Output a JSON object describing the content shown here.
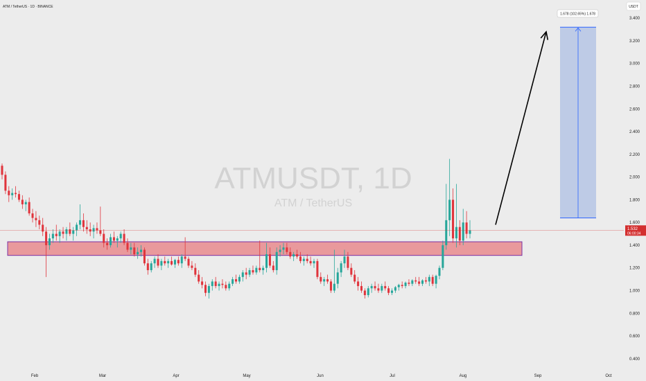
{
  "header": {
    "symbol_title": "ATM / TetherUS · 1D · BINANCE",
    "currency": "USDT"
  },
  "watermark": {
    "ticker": "ATMUSDT, 1D",
    "name": "ATM / TetherUS"
  },
  "colors": {
    "up": "#26a69a",
    "down": "#e0343c",
    "zone_fill": "#e98b8e",
    "zone_border": "#7b2fa3",
    "target_fill": "#b9c8e6",
    "target_border": "#2962ff",
    "price_tag": "#d32f2f",
    "arrow": "#000000"
  },
  "price_tag": {
    "price": "1.532",
    "countdown": "06:00:34"
  },
  "chart_data": {
    "type": "candlestick",
    "x_months": [
      "Feb",
      "Mar",
      "Apr",
      "May",
      "Jun",
      "Jul",
      "Aug",
      "Sep",
      "Oct"
    ],
    "y_ticks": [
      "0.400",
      "0.600",
      "0.800",
      "1.000",
      "1.200",
      "1.400",
      "1.600",
      "1.800",
      "2.000",
      "2.200",
      "2.400",
      "2.600",
      "2.800",
      "3.000",
      "3.200",
      "3.400"
    ],
    "ylim": [
      0.35,
      3.45
    ],
    "current_price": 1.532,
    "support_zone": {
      "low": 1.31,
      "high": 1.43
    },
    "target": {
      "from": 1.64,
      "to": 3.32,
      "label": "1.678 (102.65%) 1.678"
    },
    "arrow": {
      "from_price": 1.58,
      "to_price": 3.28
    },
    "candles": [
      [
        2.1,
        2.12,
        1.98,
        2.02
      ],
      [
        2.02,
        2.05,
        1.85,
        1.88
      ],
      [
        1.88,
        1.92,
        1.78,
        1.84
      ],
      [
        1.84,
        1.9,
        1.8,
        1.86
      ],
      [
        1.86,
        1.92,
        1.82,
        1.85
      ],
      [
        1.85,
        1.88,
        1.78,
        1.8
      ],
      [
        1.8,
        1.84,
        1.72,
        1.76
      ],
      [
        1.76,
        1.8,
        1.7,
        1.78
      ],
      [
        1.78,
        1.82,
        1.66,
        1.68
      ],
      [
        1.68,
        1.72,
        1.6,
        1.64
      ],
      [
        1.64,
        1.7,
        1.56,
        1.62
      ],
      [
        1.62,
        1.66,
        1.54,
        1.58
      ],
      [
        1.58,
        1.64,
        1.48,
        1.52
      ],
      [
        1.52,
        1.56,
        1.12,
        1.4
      ],
      [
        1.4,
        1.5,
        1.36,
        1.46
      ],
      [
        1.46,
        1.54,
        1.42,
        1.5
      ],
      [
        1.5,
        1.58,
        1.44,
        1.48
      ],
      [
        1.48,
        1.54,
        1.42,
        1.52
      ],
      [
        1.52,
        1.56,
        1.46,
        1.5
      ],
      [
        1.5,
        1.56,
        1.44,
        1.54
      ],
      [
        1.54,
        1.6,
        1.48,
        1.5
      ],
      [
        1.5,
        1.56,
        1.44,
        1.53
      ],
      [
        1.53,
        1.6,
        1.48,
        1.58
      ],
      [
        1.58,
        1.76,
        1.54,
        1.62
      ],
      [
        1.62,
        1.68,
        1.52,
        1.56
      ],
      [
        1.56,
        1.62,
        1.5,
        1.54
      ],
      [
        1.54,
        1.6,
        1.48,
        1.52
      ],
      [
        1.52,
        1.58,
        1.46,
        1.55
      ],
      [
        1.55,
        1.6,
        1.5,
        1.53
      ],
      [
        1.53,
        1.74,
        1.48,
        1.5
      ],
      [
        1.5,
        1.54,
        1.38,
        1.42
      ],
      [
        1.42,
        1.46,
        1.36,
        1.4
      ],
      [
        1.4,
        1.5,
        1.38,
        1.47
      ],
      [
        1.47,
        1.52,
        1.42,
        1.44
      ],
      [
        1.44,
        1.48,
        1.38,
        1.46
      ],
      [
        1.46,
        1.52,
        1.42,
        1.5
      ],
      [
        1.5,
        1.54,
        1.4,
        1.42
      ],
      [
        1.42,
        1.46,
        1.34,
        1.36
      ],
      [
        1.36,
        1.42,
        1.32,
        1.38
      ],
      [
        1.38,
        1.42,
        1.3,
        1.32
      ],
      [
        1.32,
        1.38,
        1.28,
        1.34
      ],
      [
        1.34,
        1.4,
        1.3,
        1.36
      ],
      [
        1.36,
        1.38,
        1.22,
        1.24
      ],
      [
        1.24,
        1.28,
        1.14,
        1.18
      ],
      [
        1.18,
        1.26,
        1.16,
        1.24
      ],
      [
        1.24,
        1.3,
        1.2,
        1.28
      ],
      [
        1.28,
        1.32,
        1.2,
        1.22
      ],
      [
        1.22,
        1.28,
        1.18,
        1.26
      ],
      [
        1.26,
        1.3,
        1.22,
        1.24
      ],
      [
        1.24,
        1.28,
        1.2,
        1.26
      ],
      [
        1.26,
        1.3,
        1.22,
        1.23
      ],
      [
        1.23,
        1.28,
        1.2,
        1.27
      ],
      [
        1.27,
        1.3,
        1.22,
        1.24
      ],
      [
        1.24,
        1.32,
        1.2,
        1.3
      ],
      [
        1.3,
        1.47,
        1.26,
        1.28
      ],
      [
        1.28,
        1.3,
        1.2,
        1.22
      ],
      [
        1.22,
        1.26,
        1.18,
        1.2
      ],
      [
        1.2,
        1.24,
        1.12,
        1.14
      ],
      [
        1.14,
        1.18,
        1.06,
        1.08
      ],
      [
        1.08,
        1.12,
        1.02,
        1.05
      ],
      [
        1.05,
        1.08,
        0.95,
        0.98
      ],
      [
        0.98,
        1.06,
        0.93,
        1.04
      ],
      [
        1.04,
        1.1,
        1.0,
        1.08
      ],
      [
        1.08,
        1.12,
        1.02,
        1.04
      ],
      [
        1.04,
        1.08,
        1.0,
        1.06
      ],
      [
        1.06,
        1.1,
        1.02,
        1.05
      ],
      [
        1.05,
        1.08,
        1.0,
        1.02
      ],
      [
        1.02,
        1.08,
        1.0,
        1.06
      ],
      [
        1.06,
        1.12,
        1.04,
        1.1
      ],
      [
        1.1,
        1.14,
        1.06,
        1.08
      ],
      [
        1.08,
        1.14,
        1.06,
        1.12
      ],
      [
        1.12,
        1.18,
        1.08,
        1.16
      ],
      [
        1.16,
        1.2,
        1.1,
        1.14
      ],
      [
        1.14,
        1.2,
        1.12,
        1.18
      ],
      [
        1.18,
        1.22,
        1.14,
        1.16
      ],
      [
        1.16,
        1.22,
        1.14,
        1.2
      ],
      [
        1.2,
        1.44,
        1.16,
        1.18
      ],
      [
        1.18,
        1.22,
        1.14,
        1.2
      ],
      [
        1.2,
        1.42,
        1.16,
        1.32
      ],
      [
        1.32,
        1.38,
        1.2,
        1.22
      ],
      [
        1.22,
        1.26,
        1.16,
        1.18
      ],
      [
        1.18,
        1.38,
        1.14,
        1.34
      ],
      [
        1.34,
        1.4,
        1.3,
        1.36
      ],
      [
        1.36,
        1.42,
        1.32,
        1.38
      ],
      [
        1.38,
        1.42,
        1.32,
        1.34
      ],
      [
        1.34,
        1.38,
        1.28,
        1.3
      ],
      [
        1.3,
        1.34,
        1.26,
        1.32
      ],
      [
        1.32,
        1.36,
        1.28,
        1.3
      ],
      [
        1.3,
        1.34,
        1.24,
        1.26
      ],
      [
        1.26,
        1.3,
        1.22,
        1.28
      ],
      [
        1.28,
        1.32,
        1.24,
        1.26
      ],
      [
        1.26,
        1.3,
        1.22,
        1.24
      ],
      [
        1.24,
        1.28,
        1.2,
        1.26
      ],
      [
        1.26,
        1.28,
        1.1,
        1.12
      ],
      [
        1.12,
        1.16,
        1.06,
        1.08
      ],
      [
        1.08,
        1.12,
        1.04,
        1.1
      ],
      [
        1.1,
        1.14,
        1.06,
        1.08
      ],
      [
        1.08,
        1.1,
        0.98,
        1.0
      ],
      [
        1.0,
        1.36,
        0.98,
        1.06
      ],
      [
        1.06,
        1.2,
        1.02,
        1.16
      ],
      [
        1.16,
        1.26,
        1.12,
        1.24
      ],
      [
        1.24,
        1.36,
        1.2,
        1.3
      ],
      [
        1.3,
        1.34,
        1.18,
        1.2
      ],
      [
        1.2,
        1.24,
        1.12,
        1.14
      ],
      [
        1.14,
        1.18,
        1.06,
        1.08
      ],
      [
        1.08,
        1.12,
        1.0,
        1.04
      ],
      [
        1.04,
        1.08,
        0.98,
        1.0
      ],
      [
        1.0,
        1.02,
        0.93,
        0.96
      ],
      [
        0.96,
        1.04,
        0.94,
        1.02
      ],
      [
        1.02,
        1.06,
        0.98,
        1.04
      ],
      [
        1.04,
        1.08,
        1.0,
        1.02
      ],
      [
        1.02,
        1.06,
        0.98,
        1.0
      ],
      [
        1.0,
        1.06,
        0.98,
        1.04
      ],
      [
        1.04,
        1.08,
        1.0,
        1.02
      ],
      [
        1.02,
        1.04,
        0.96,
        0.98
      ],
      [
        0.98,
        1.02,
        0.96,
        1.0
      ],
      [
        1.0,
        1.04,
        0.98,
        1.03
      ],
      [
        1.03,
        1.06,
        1.0,
        1.05
      ],
      [
        1.05,
        1.08,
        1.02,
        1.04
      ],
      [
        1.04,
        1.08,
        1.02,
        1.07
      ],
      [
        1.07,
        1.1,
        1.04,
        1.06
      ],
      [
        1.06,
        1.1,
        1.04,
        1.09
      ],
      [
        1.09,
        1.12,
        1.06,
        1.08
      ],
      [
        1.08,
        1.12,
        1.04,
        1.06
      ],
      [
        1.06,
        1.1,
        1.04,
        1.09
      ],
      [
        1.09,
        1.12,
        1.06,
        1.08
      ],
      [
        1.08,
        1.14,
        1.04,
        1.12
      ],
      [
        1.12,
        1.14,
        1.04,
        1.06
      ],
      [
        1.06,
        1.14,
        1.02,
        1.13
      ],
      [
        1.13,
        1.22,
        1.1,
        1.2
      ],
      [
        1.2,
        1.44,
        1.18,
        1.4
      ],
      [
        1.4,
        1.94,
        1.36,
        1.62
      ],
      [
        1.62,
        2.16,
        1.48,
        1.8
      ],
      [
        1.8,
        1.9,
        1.42,
        1.46
      ],
      [
        1.46,
        1.94,
        1.38,
        1.56
      ],
      [
        1.56,
        1.62,
        1.4,
        1.44
      ],
      [
        1.44,
        1.72,
        1.4,
        1.6
      ],
      [
        1.6,
        1.7,
        1.46,
        1.5
      ],
      [
        1.5,
        1.62,
        1.46,
        1.53
      ]
    ]
  }
}
